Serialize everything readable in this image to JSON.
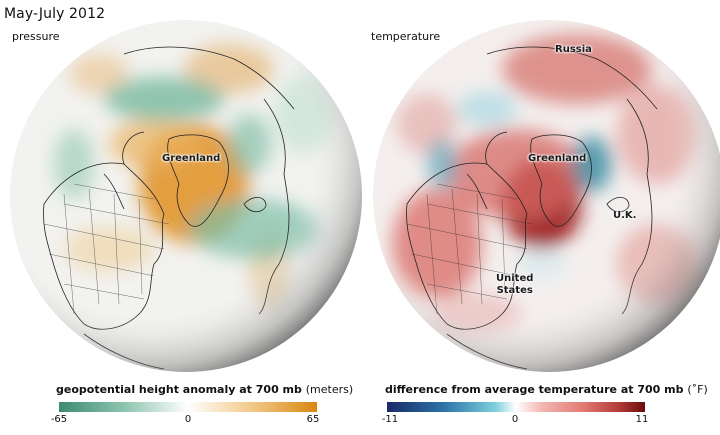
{
  "title": "May-July 2012",
  "pressure_panel": {
    "label": "pressure",
    "map_labels": {
      "greenland": "Greenland"
    },
    "legend": {
      "title": "geopotential height anomaly at 700 mb",
      "unit": "(meters)",
      "ticks": [
        "-65",
        "0",
        "65"
      ],
      "colors": {
        "low": "#3d8a72",
        "mid": "#ffffff",
        "high": "#d9860f"
      }
    }
  },
  "temperature_panel": {
    "label": "temperature",
    "map_labels": {
      "russia": "Russia",
      "greenland": "Greenland",
      "uk": "U.K.",
      "us_line1": "United",
      "us_line2": "States"
    },
    "legend": {
      "title": "difference from average temperature at 700 mb",
      "unit": "(˚F)",
      "ticks": [
        "-11",
        "0",
        "11"
      ],
      "colors": {
        "low": "#1b2a66",
        "mid_low": "#7fd0dc",
        "mid": "#ffffff",
        "mid_high": "#e27a74",
        "high": "#6a0d0d"
      }
    }
  }
}
